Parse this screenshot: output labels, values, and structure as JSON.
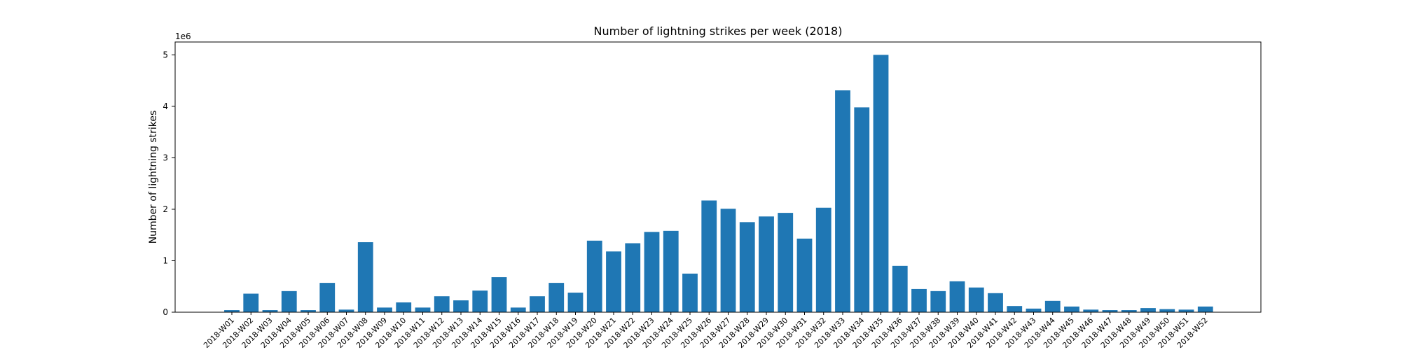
{
  "chart_data": {
    "type": "bar",
    "title": "Number of lightning strikes per week (2018)",
    "xlabel": "",
    "ylabel": "Number of lightning strikes",
    "y_multiplier": "1e6",
    "ylim": [
      0,
      5.25
    ],
    "yticks": [
      0,
      1,
      2,
      3,
      4,
      5
    ],
    "bar_color": "#1f77b4",
    "categories": [
      "2018-W01",
      "2018-W02",
      "2018-W03",
      "2018-W04",
      "2018-W05",
      "2018-W06",
      "2018-W07",
      "2018-W08",
      "2018-W09",
      "2018-W10",
      "2018-W11",
      "2018-W12",
      "2018-W13",
      "2018-W14",
      "2018-W15",
      "2018-W16",
      "2018-W17",
      "2018-W18",
      "2018-W19",
      "2018-W20",
      "2018-W21",
      "2018-W22",
      "2018-W23",
      "2018-W24",
      "2018-W25",
      "2018-W26",
      "2018-W27",
      "2018-W28",
      "2018-W29",
      "2018-W30",
      "2018-W31",
      "2018-W32",
      "2018-W33",
      "2018-W34",
      "2018-W35",
      "2018-W36",
      "2018-W37",
      "2018-W38",
      "2018-W39",
      "2018-W40",
      "2018-W41",
      "2018-W42",
      "2018-W43",
      "2018-W44",
      "2018-W45",
      "2018-W46",
      "2018-W47",
      "2018-W48",
      "2018-W49",
      "2018-W50",
      "2018-W51",
      "2018-W52"
    ],
    "values": [
      0.04,
      0.36,
      0.04,
      0.41,
      0.04,
      0.57,
      0.05,
      1.36,
      0.09,
      0.19,
      0.09,
      0.31,
      0.23,
      0.42,
      0.68,
      0.09,
      0.31,
      0.57,
      0.38,
      1.39,
      1.18,
      1.34,
      1.56,
      1.58,
      0.75,
      2.17,
      2.01,
      1.75,
      1.86,
      1.93,
      1.43,
      2.03,
      4.31,
      3.98,
      5.0,
      0.9,
      0.45,
      0.41,
      0.6,
      0.48,
      0.37,
      0.12,
      0.07,
      0.22,
      0.11,
      0.05,
      0.04,
      0.04,
      0.08,
      0.06,
      0.05,
      0.11
    ]
  }
}
